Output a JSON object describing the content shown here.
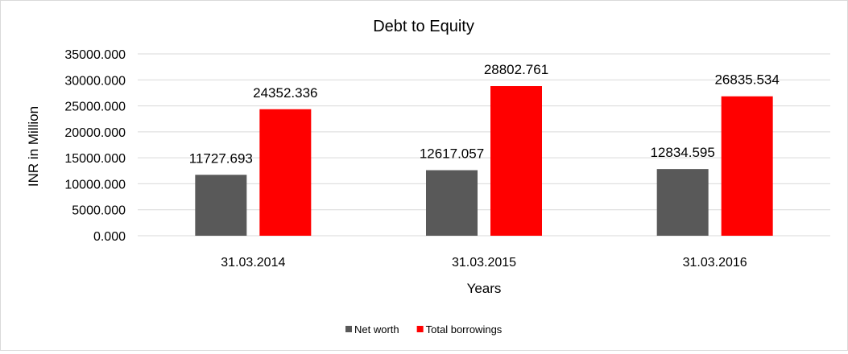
{
  "chart_data": {
    "type": "bar",
    "title": "Debt to Equity",
    "xlabel": "Years",
    "ylabel": "INR in Million",
    "categories": [
      "31.03.2014",
      "31.03.2015",
      "31.03.2016"
    ],
    "series": [
      {
        "name": "Net worth",
        "values": [
          11727.693,
          12617.057,
          12834.595
        ],
        "color": "#595959"
      },
      {
        "name": "Total borrowings",
        "values": [
          24352.336,
          28802.761,
          26835.534
        ],
        "color": "#ff0000"
      }
    ],
    "ylim": [
      0,
      35000
    ],
    "yticks": [
      "0.000",
      "5000.000",
      "10000.000",
      "15000.000",
      "20000.000",
      "25000.000",
      "30000.000",
      "35000.000"
    ],
    "grid": true,
    "gridline_color": "#d9d9d9",
    "legend_position": "bottom"
  }
}
